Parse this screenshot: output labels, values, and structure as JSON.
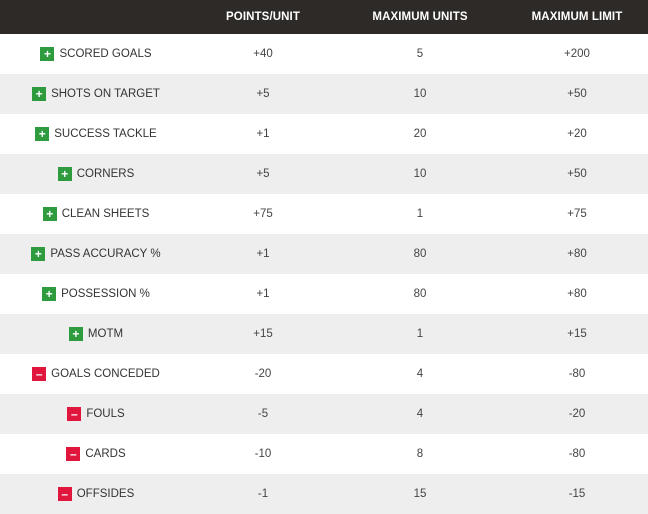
{
  "header": {
    "col0": "",
    "col1": "POINTS/UNIT",
    "col2": "MAXIMUM UNITS",
    "col3": "MAXIMUM LIMIT"
  },
  "colors": {
    "header_bg": "#2e2a27",
    "plus": "#2e9b3e",
    "minus": "#e0163c",
    "stripe": "#eeeeee"
  },
  "rows": [
    {
      "sign": "+",
      "label": "SCORED GOALS",
      "points": "+40",
      "units": "5",
      "limit": "+200"
    },
    {
      "sign": "+",
      "label": "SHOTS ON TARGET",
      "points": "+5",
      "units": "10",
      "limit": "+50"
    },
    {
      "sign": "+",
      "label": "SUCCESS TACKLE",
      "points": "+1",
      "units": "20",
      "limit": "+20"
    },
    {
      "sign": "+",
      "label": "CORNERS",
      "points": "+5",
      "units": "10",
      "limit": "+50"
    },
    {
      "sign": "+",
      "label": "CLEAN SHEETS",
      "points": "+75",
      "units": "1",
      "limit": "+75"
    },
    {
      "sign": "+",
      "label": "PASS ACCURACY %",
      "points": "+1",
      "units": "80",
      "limit": "+80"
    },
    {
      "sign": "+",
      "label": "POSSESSION %",
      "points": "+1",
      "units": "80",
      "limit": "+80"
    },
    {
      "sign": "+",
      "label": "MOTM",
      "points": "+15",
      "units": "1",
      "limit": "+15"
    },
    {
      "sign": "–",
      "label": "GOALS CONCEDED",
      "points": "-20",
      "units": "4",
      "limit": "-80"
    },
    {
      "sign": "–",
      "label": "FOULS",
      "points": "-5",
      "units": "4",
      "limit": "-20"
    },
    {
      "sign": "–",
      "label": "CARDS",
      "points": "-10",
      "units": "8",
      "limit": "-80"
    },
    {
      "sign": "–",
      "label": "OFFSIDES",
      "points": "-1",
      "units": "15",
      "limit": "-15"
    }
  ]
}
